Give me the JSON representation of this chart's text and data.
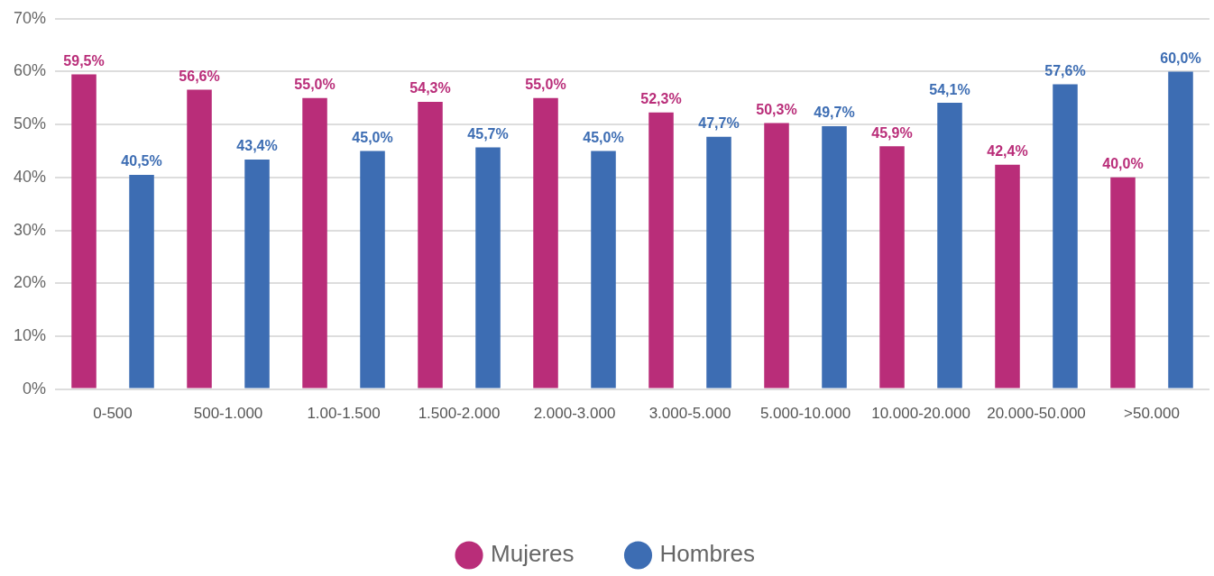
{
  "chart_data": {
    "type": "bar",
    "categories": [
      "0-500",
      "500-1.000",
      "1.00-1.500",
      "1.500-2.000",
      "2.000-3.000",
      "3.000-5.000",
      "5.000-10.000",
      "10.000-20.000",
      "20.000-50.000",
      ">50.000"
    ],
    "series": [
      {
        "name": "Mujeres",
        "color": "#b92d79",
        "values": [
          59.5,
          56.6,
          55.0,
          54.3,
          55.0,
          52.3,
          50.3,
          45.9,
          42.4,
          40.0
        ],
        "value_labels": [
          "59,5%",
          "56,6%",
          "55,0%",
          "54,3%",
          "55,0%",
          "52,3%",
          "50,3%",
          "45,9%",
          "42,4%",
          "40,0%"
        ]
      },
      {
        "name": "Hombres",
        "color": "#3d6db3",
        "values": [
          40.5,
          43.4,
          45.0,
          45.7,
          45.0,
          47.7,
          49.7,
          54.1,
          57.6,
          60.0
        ],
        "value_labels": [
          "40,5%",
          "43,4%",
          "45,0%",
          "45,7%",
          "45,0%",
          "47,7%",
          "49,7%",
          "54,1%",
          "57,6%",
          "60,0%"
        ]
      }
    ],
    "ylim": [
      0,
      70
    ],
    "yticks": [
      {
        "value": 0,
        "label": "0%"
      },
      {
        "value": 10,
        "label": "10%"
      },
      {
        "value": 20,
        "label": "20%"
      },
      {
        "value": 30,
        "label": "30%"
      },
      {
        "value": 40,
        "label": "40%"
      },
      {
        "value": 50,
        "label": "50%"
      },
      {
        "value": 60,
        "label": "60%"
      },
      {
        "value": 70,
        "label": "70%"
      }
    ],
    "grid": "y",
    "legend": "bottom"
  }
}
